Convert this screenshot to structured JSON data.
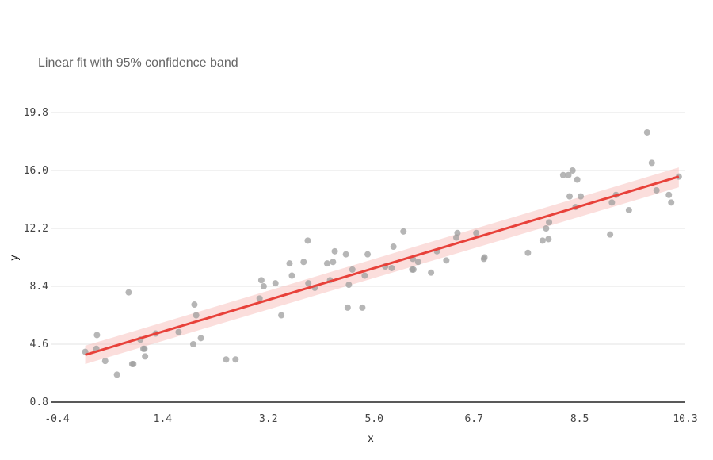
{
  "chart_data": {
    "type": "scatter",
    "title": "Linear fit with 95% confidence band",
    "xlabel": "x",
    "ylabel": "y",
    "xlim": [
      -0.4,
      10.3
    ],
    "ylim": [
      0.8,
      19.8
    ],
    "x_ticks": [
      "-0.4",
      "1.4",
      "3.2",
      "5.0",
      "6.7",
      "8.5",
      "10.3"
    ],
    "y_ticks": [
      "0.8",
      "4.6",
      "8.4",
      "12.2",
      "16.0",
      "19.8"
    ],
    "grid": true,
    "colors": {
      "points": "#9e9e9e",
      "fit": "#e8413a",
      "band": "#f7b5b2"
    },
    "points": [
      [
        0.08,
        4.1
      ],
      [
        0.27,
        4.3
      ],
      [
        0.28,
        5.2
      ],
      [
        0.42,
        3.5
      ],
      [
        0.62,
        2.6
      ],
      [
        0.82,
        8.0
      ],
      [
        0.88,
        3.3
      ],
      [
        0.9,
        3.3
      ],
      [
        1.02,
        4.9
      ],
      [
        1.07,
        4.3
      ],
      [
        1.09,
        4.3
      ],
      [
        1.1,
        3.8
      ],
      [
        1.28,
        5.3
      ],
      [
        1.67,
        5.4
      ],
      [
        1.92,
        4.6
      ],
      [
        1.94,
        7.2
      ],
      [
        1.97,
        6.5
      ],
      [
        2.05,
        5.0
      ],
      [
        2.48,
        3.6
      ],
      [
        2.64,
        3.6
      ],
      [
        3.05,
        7.6
      ],
      [
        3.08,
        8.8
      ],
      [
        3.12,
        8.4
      ],
      [
        3.32,
        8.6
      ],
      [
        3.42,
        6.5
      ],
      [
        3.56,
        9.9
      ],
      [
        3.6,
        9.1
      ],
      [
        3.8,
        10.0
      ],
      [
        3.87,
        11.4
      ],
      [
        3.88,
        8.6
      ],
      [
        3.99,
        8.3
      ],
      [
        4.2,
        9.9
      ],
      [
        4.25,
        8.8
      ],
      [
        4.3,
        10.0
      ],
      [
        4.33,
        10.7
      ],
      [
        4.52,
        10.5
      ],
      [
        4.55,
        7.0
      ],
      [
        4.57,
        8.5
      ],
      [
        4.63,
        9.5
      ],
      [
        4.8,
        7.0
      ],
      [
        4.84,
        9.1
      ],
      [
        4.89,
        10.5
      ],
      [
        5.19,
        9.7
      ],
      [
        5.3,
        9.6
      ],
      [
        5.33,
        11.0
      ],
      [
        5.5,
        12.0
      ],
      [
        5.65,
        9.5
      ],
      [
        5.66,
        10.2
      ],
      [
        5.67,
        9.5
      ],
      [
        5.75,
        10.0
      ],
      [
        5.97,
        9.3
      ],
      [
        6.07,
        10.7
      ],
      [
        6.23,
        10.1
      ],
      [
        6.4,
        11.6
      ],
      [
        6.42,
        11.9
      ],
      [
        6.74,
        11.9
      ],
      [
        6.87,
        10.2
      ],
      [
        6.88,
        10.3
      ],
      [
        7.62,
        10.6
      ],
      [
        7.87,
        11.4
      ],
      [
        7.93,
        12.2
      ],
      [
        7.97,
        11.5
      ],
      [
        7.98,
        12.6
      ],
      [
        8.22,
        15.7
      ],
      [
        8.31,
        15.7
      ],
      [
        8.33,
        14.3
      ],
      [
        8.38,
        16.0
      ],
      [
        8.43,
        13.6
      ],
      [
        8.46,
        15.4
      ],
      [
        8.52,
        14.3
      ],
      [
        9.02,
        11.8
      ],
      [
        9.05,
        13.9
      ],
      [
        9.12,
        14.4
      ],
      [
        9.34,
        13.4
      ],
      [
        9.65,
        18.5
      ],
      [
        9.73,
        16.5
      ],
      [
        9.81,
        14.7
      ],
      [
        10.02,
        14.4
      ],
      [
        10.06,
        13.9
      ],
      [
        10.19,
        15.6
      ]
    ],
    "fit_line": {
      "x": [
        0.08,
        10.19
      ],
      "y": [
        3.9,
        15.6
      ]
    },
    "band": {
      "x": [
        0.08,
        10.19
      ],
      "upper": [
        4.5,
        16.2
      ],
      "lower": [
        3.3,
        14.9
      ]
    }
  }
}
